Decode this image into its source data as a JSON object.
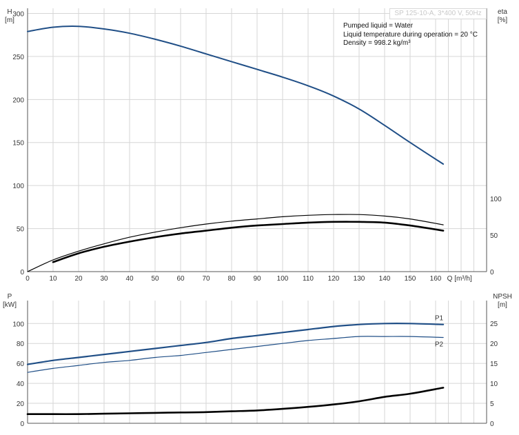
{
  "header": {
    "model": "SP 125-10-A, 3*400 V, 50Hz",
    "info_lines": [
      "Pumped liquid = Water",
      "Liquid temperature during operation = 20 °C",
      "Density = 998.2 kg/m³"
    ]
  },
  "colors": {
    "head": "#1f4e86",
    "efficiency": "#000000",
    "power": "#1f4e86",
    "npsh": "#000000",
    "grid": "#d6d6d6"
  },
  "chart_data": [
    {
      "type": "line",
      "title": "",
      "xlabel": "Q [m³/h]",
      "ylabel_left": [
        "H",
        "[m]"
      ],
      "ylabel_right": [
        "eta",
        "[%]"
      ],
      "xlim": [
        0,
        165
      ],
      "ylim_left": [
        0,
        320
      ],
      "ylim_right": [
        0,
        100
      ],
      "x_ticks": [
        0,
        10,
        20,
        30,
        40,
        50,
        60,
        70,
        80,
        90,
        100,
        110,
        120,
        130,
        140,
        150,
        160
      ],
      "y_ticks_left": [
        0,
        50,
        100,
        150,
        200,
        250,
        300
      ],
      "y_ticks_right": [
        0,
        50,
        100
      ],
      "grid": true,
      "series": [
        {
          "key": "head",
          "axis": "left",
          "x": [
            0,
            10,
            20,
            30,
            40,
            50,
            60,
            70,
            80,
            90,
            100,
            110,
            120,
            130,
            140,
            150,
            163
          ],
          "y": [
            279,
            284,
            285,
            282,
            277,
            270,
            262,
            253,
            244,
            235,
            226,
            216,
            204,
            189,
            170,
            150,
            125
          ]
        },
        {
          "key": "eta-thin",
          "axis": "right",
          "x": [
            0,
            10,
            20,
            30,
            40,
            50,
            60,
            70,
            80,
            90,
            100,
            110,
            120,
            130,
            140,
            150,
            163
          ],
          "y": [
            0,
            16,
            28,
            38,
            47,
            54,
            60,
            65,
            69,
            72,
            75,
            77,
            78,
            78,
            76,
            72,
            64
          ]
        },
        {
          "key": "eta-thick",
          "axis": "right",
          "x": [
            10,
            20,
            30,
            40,
            50,
            60,
            70,
            80,
            90,
            100,
            110,
            120,
            130,
            140,
            150,
            163
          ],
          "y": [
            13,
            25,
            34,
            41,
            47,
            52,
            56,
            60,
            63,
            65,
            67,
            68,
            68,
            67,
            63,
            56
          ]
        }
      ]
    },
    {
      "type": "line",
      "title": "",
      "xlabel": "",
      "ylabel_left": [
        "P",
        "[kW]"
      ],
      "ylabel_right": [
        "NPSH",
        "[m]"
      ],
      "xlim": [
        0,
        165
      ],
      "ylim_left": [
        0,
        120
      ],
      "ylim_right": [
        0,
        30
      ],
      "x_ticks": [
        0,
        10,
        20,
        30,
        40,
        50,
        60,
        70,
        80,
        90,
        100,
        110,
        120,
        130,
        140,
        150,
        160
      ],
      "y_ticks_left": [
        0,
        20,
        40,
        60,
        80,
        100
      ],
      "y_ticks_right": [
        0,
        5,
        10,
        15,
        20,
        25
      ],
      "grid": true,
      "series": [
        {
          "name": "P1",
          "axis": "left",
          "x": [
            0,
            10,
            20,
            30,
            40,
            50,
            60,
            70,
            80,
            90,
            100,
            110,
            120,
            130,
            140,
            150,
            163
          ],
          "y": [
            59,
            63,
            66,
            69,
            72,
            75,
            78,
            81,
            85,
            88,
            91,
            94,
            97,
            99,
            100,
            100,
            99
          ]
        },
        {
          "name": "P2",
          "axis": "left",
          "x": [
            0,
            10,
            20,
            30,
            40,
            50,
            60,
            70,
            80,
            90,
            100,
            110,
            120,
            130,
            140,
            150,
            163
          ],
          "y": [
            51,
            55,
            58,
            61,
            63,
            66,
            68,
            71,
            74,
            77,
            80,
            83,
            85,
            87,
            87,
            87,
            86
          ]
        },
        {
          "key": "npsh",
          "axis": "right",
          "x": [
            0,
            10,
            20,
            30,
            40,
            50,
            60,
            70,
            80,
            90,
            100,
            110,
            120,
            130,
            140,
            150,
            163
          ],
          "y": [
            2.3,
            2.3,
            2.3,
            2.4,
            2.5,
            2.6,
            2.7,
            2.8,
            3.0,
            3.2,
            3.6,
            4.1,
            4.7,
            5.5,
            6.6,
            7.4,
            8.9
          ]
        }
      ]
    }
  ]
}
